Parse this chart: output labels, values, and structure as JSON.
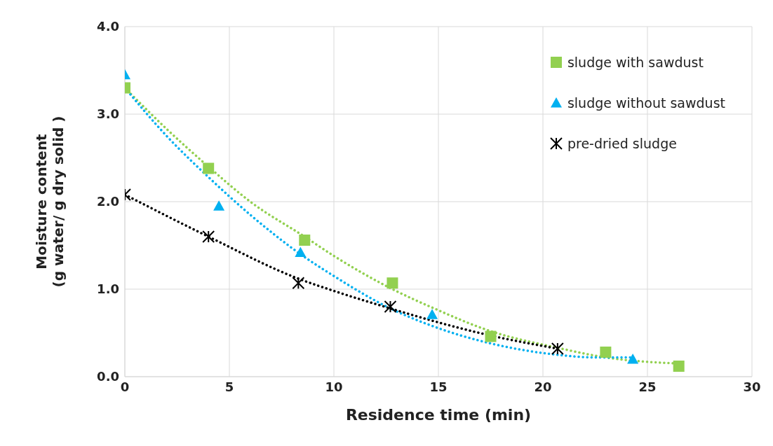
{
  "chart_data": {
    "type": "scatter",
    "xlabel": "Residence time (min)",
    "ylabel": "Moisture content\n(g water/ g dry solid )",
    "xlim": [
      0,
      30
    ],
    "xticks": [
      0,
      5,
      10,
      15,
      20,
      25,
      30
    ],
    "ylim": [
      0,
      4
    ],
    "yticks": [
      {
        "value": 0,
        "label": "0.0"
      },
      {
        "value": 1,
        "label": "1.0"
      },
      {
        "value": 2,
        "label": "2.0"
      },
      {
        "value": 3,
        "label": "3.0"
      },
      {
        "value": 4,
        "label": "4.0"
      }
    ],
    "grid": true,
    "legend": "top right",
    "series": [
      {
        "name": "sludge with sawdust",
        "marker": "square",
        "color": "#92d050",
        "x": [
          0,
          4.0,
          8.6,
          12.8,
          17.5,
          23.0,
          26.5
        ],
        "values": [
          3.3,
          2.38,
          1.56,
          1.07,
          0.46,
          0.28,
          0.12
        ]
      },
      {
        "name": "sludge without sawdust",
        "marker": "triangle",
        "color": "#00b0f0",
        "x": [
          0,
          4.5,
          8.4,
          12.7,
          14.7,
          24.3
        ],
        "values": [
          3.45,
          1.95,
          1.42,
          null,
          0.71,
          0.2
        ]
      },
      {
        "name": "pre-dried sludge",
        "marker": "cross",
        "color": "#000000",
        "x": [
          0,
          4.0,
          8.3,
          12.7,
          20.7
        ],
        "values": [
          2.08,
          1.6,
          1.07,
          0.8,
          0.32
        ]
      },
      {
        "type": "line",
        "line_style": "dotted",
        "marker": "none",
        "color": "#92d050",
        "x": [
          0,
          2,
          4,
          6,
          8.6,
          10,
          12.8,
          14.7,
          17.5,
          20.7,
          23,
          26.5
        ],
        "values": [
          3.3,
          2.83,
          2.4,
          2.0,
          1.6,
          1.38,
          1.0,
          0.79,
          0.52,
          0.33,
          0.22,
          0.15
        ]
      },
      {
        "type": "line",
        "line_style": "dotted",
        "marker": "none",
        "color": "#00b0f0",
        "x": [
          0,
          2,
          4,
          6,
          8.4,
          10,
          12.7,
          14.7,
          17.5,
          20.7,
          22.5,
          24.3
        ],
        "values": [
          3.3,
          2.75,
          2.28,
          1.85,
          1.4,
          1.15,
          0.78,
          0.58,
          0.38,
          0.25,
          0.22,
          0.22
        ]
      },
      {
        "type": "line",
        "line_style": "dotted",
        "marker": "none",
        "color": "#000000",
        "x": [
          0,
          4,
          8.3,
          10,
          12.7,
          15,
          17.5,
          20.7
        ],
        "values": [
          2.08,
          1.6,
          1.12,
          0.98,
          0.78,
          0.62,
          0.47,
          0.32
        ]
      }
    ]
  }
}
